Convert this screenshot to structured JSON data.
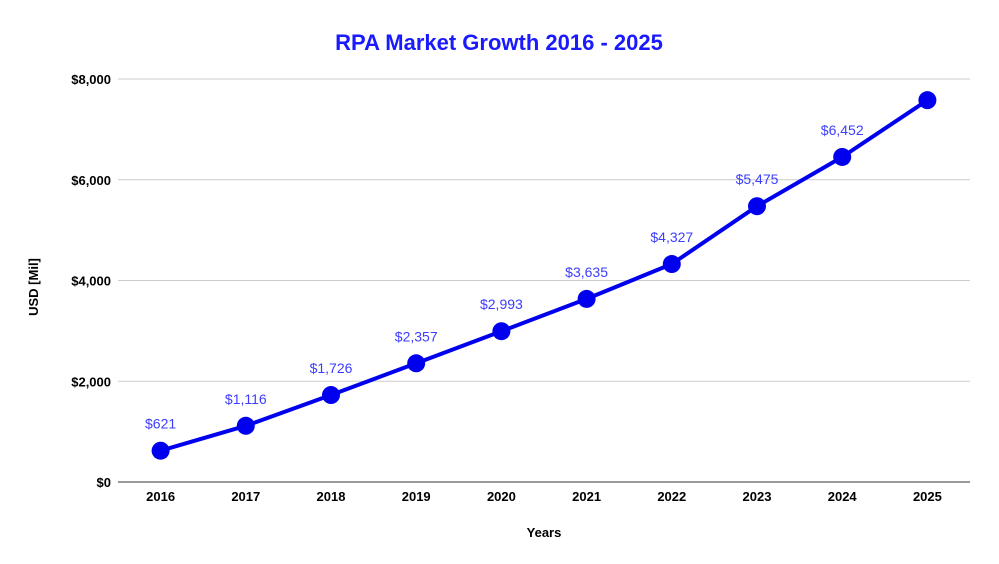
{
  "chart_data": {
    "type": "line",
    "title": "RPA Market Growth 2016 - 2025",
    "xlabel": "Years",
    "ylabel": "USD [Mil]",
    "categories": [
      "2016",
      "2017",
      "2018",
      "2019",
      "2020",
      "2021",
      "2022",
      "2023",
      "2024",
      "2025"
    ],
    "series": [
      {
        "values": [
          621,
          1116,
          1726,
          2357,
          2993,
          3635,
          4327,
          5475,
          6452,
          7580
        ],
        "data_labels": [
          "$621",
          "$1,116",
          "$1,726",
          "$2,357",
          "$2,993",
          "$3,635",
          "$4,327",
          "$5,475",
          "$6,452",
          ""
        ]
      }
    ],
    "ylim": [
      0,
      8000
    ],
    "yticks": [
      0,
      2000,
      4000,
      6000,
      8000
    ],
    "ytick_labels": [
      "$0",
      "$2,000",
      "$4,000",
      "$6,000",
      "$8,000"
    ],
    "grid": true,
    "legend": "none",
    "colors": {
      "line": "#0000ee",
      "title": "#1a1aff",
      "data_label": "#3d3dff",
      "grid": "#cccccc"
    }
  }
}
